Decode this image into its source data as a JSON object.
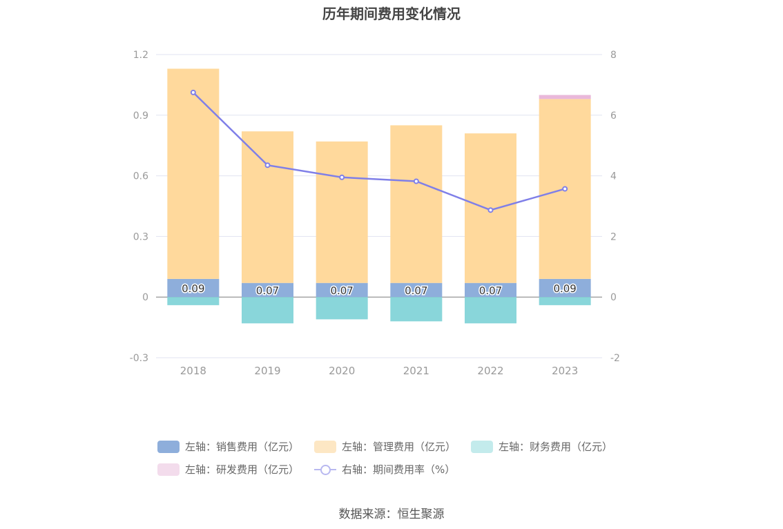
{
  "chart_data": {
    "type": "bar",
    "title": "历年期间费用变化情况",
    "categories": [
      "2018",
      "2019",
      "2020",
      "2021",
      "2022",
      "2023"
    ],
    "stacked": true,
    "left_axis": {
      "ticks": [
        "-0.3",
        "0",
        "0.3",
        "0.6",
        "0.9",
        "1.2"
      ],
      "ylim": [
        -0.3,
        1.2
      ]
    },
    "right_axis": {
      "ticks": [
        "-2",
        "0",
        "2",
        "4",
        "6",
        "8"
      ],
      "ylim": [
        -2,
        8
      ]
    },
    "series": [
      {
        "name": "左轴：销售费用（亿元）",
        "type": "bar",
        "axis": "left",
        "color": "#8eaedb",
        "values": [
          0.09,
          0.07,
          0.07,
          0.07,
          0.07,
          0.09
        ],
        "labels": [
          "0.09",
          "0.07",
          "0.07",
          "0.07",
          "0.07",
          "0.09"
        ]
      },
      {
        "name": "左轴：管理费用（亿元）",
        "type": "bar",
        "axis": "left",
        "color": "#ffd99c",
        "values": [
          1.04,
          0.75,
          0.7,
          0.78,
          0.74,
          0.89
        ]
      },
      {
        "name": "左轴：财务费用（亿元）",
        "type": "bar",
        "axis": "left",
        "color": "#89d6da",
        "values": [
          -0.04,
          -0.13,
          -0.11,
          -0.12,
          -0.13,
          -0.04
        ]
      },
      {
        "name": "左轴：研发费用（亿元）",
        "type": "bar",
        "axis": "left",
        "color": "#e9b8da",
        "values": [
          0,
          0,
          0,
          0,
          0,
          0.02
        ]
      },
      {
        "name": "右轴：期间费用率（%）",
        "type": "line",
        "axis": "right",
        "color": "#7f7fe8",
        "values": [
          6.75,
          4.35,
          3.95,
          3.82,
          2.87,
          3.57
        ]
      }
    ],
    "legend_position": "bottom",
    "grid": true
  },
  "legend": [
    {
      "label": "左轴：销售费用（亿元）",
      "color": "#8eaedb",
      "kind": "bar"
    },
    {
      "label": "左轴：管理费用（亿元）",
      "color": "#fde7c4",
      "kind": "bar"
    },
    {
      "label": "左轴：财务费用（亿元）",
      "color": "#c3ebec",
      "kind": "bar"
    },
    {
      "label": "左轴：研发费用（亿元）",
      "color": "#f3dcec",
      "kind": "bar"
    },
    {
      "label": "右轴：期间费用率（%）",
      "color": "#b8b8f0",
      "kind": "line"
    }
  ],
  "source": "数据来源：恒生聚源"
}
